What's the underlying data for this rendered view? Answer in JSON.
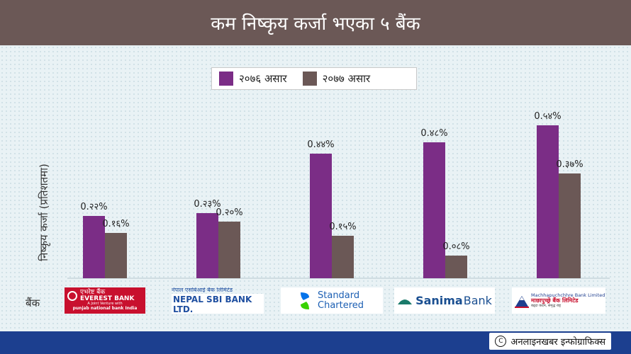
{
  "header": {
    "title": "कम निष्कृय कर्जा भएका ५ बैंक"
  },
  "chart_data": {
    "type": "bar",
    "ylabel": "निष्कृय कर्जा (प्रतिशतमा)",
    "xlabel": "बैंक",
    "categories": [
      "EVEREST BANK",
      "NEPAL SBI BANK LTD.",
      "Standard Chartered",
      "Sanima Bank",
      "Machhapuchchhre Bank Limited"
    ],
    "series": [
      {
        "name": "२०७६ असार",
        "color": "#7b2d86",
        "values": [
          0.22,
          0.23,
          0.44,
          0.48,
          0.54
        ],
        "labels": [
          "0.२२%",
          "0.२३%",
          "0.४४%",
          "0.४८%",
          "0.५४%"
        ]
      },
      {
        "name": "२०७७ असार",
        "color": "#6b5856",
        "values": [
          0.16,
          0.2,
          0.15,
          0.08,
          0.37
        ],
        "labels": [
          "0.१६%",
          "0.२०%",
          "0.१५%",
          "0.०८%",
          "0.३७%"
        ]
      }
    ],
    "ylim": [
      0,
      0.6
    ],
    "grid": false,
    "legend_position": "top"
  },
  "logos": {
    "everest": {
      "line1": "एभरेष्ट बैंक",
      "line2": "EVEREST BANK",
      "line3": "A Joint Venture with",
      "line4": "punjab national bank India"
    },
    "sbi": {
      "line1": "नेपाल एसबिआई बैंक लिमिटेड",
      "line2": "NEPAL SBI BANK LTD."
    },
    "standard": {
      "line1": "Standard",
      "line2": "Chartered"
    },
    "sanima": {
      "line1": "Sanima",
      "line2": "Bank"
    },
    "machha": {
      "line1": "Machhapuchchhre Bank Limited",
      "line2": "माछापुच्छ्रे बैंक लिमिटेड",
      "line3": "बढ्दा कदम, समृद्ध राष्ट्र"
    }
  },
  "footer": {
    "credit_mark": "C",
    "credit": "अनलाइनखबर इन्फोग्राफिक्स"
  }
}
